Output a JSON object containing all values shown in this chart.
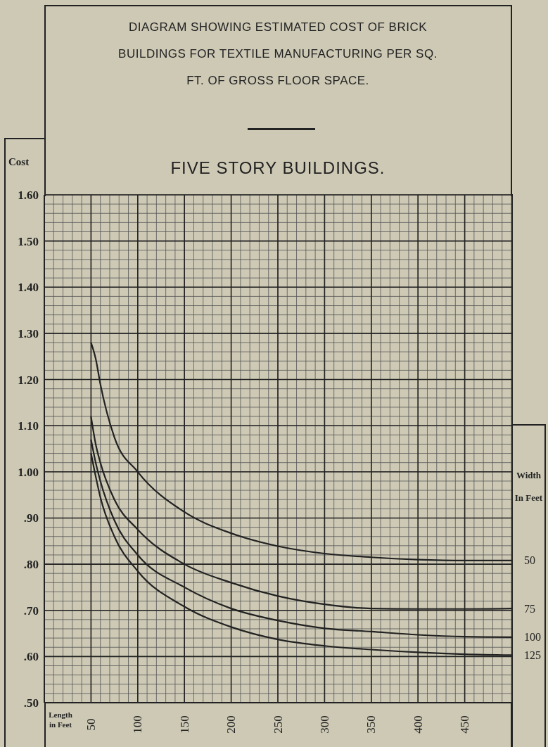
{
  "chart_data": {
    "type": "line",
    "title": "DIAGRAM SHOWING ESTIMATED COST OF BRICK BUILDINGS FOR TEXTILE MANUFACTURING PER SQ. FT. OF GROSS FLOOR SPACE.",
    "subtitle": "FIVE STORY BUILDINGS.",
    "xlabel": "Length in Feet",
    "ylabel": "Cost",
    "legend_title": "Width In Feet",
    "x": [
      50,
      55,
      60,
      75,
      100,
      150,
      200,
      250,
      300,
      350,
      400,
      450,
      500
    ],
    "series": [
      {
        "name": "50",
        "color": "#222222",
        "values": [
          1.28,
          1.245,
          1.19,
          1.075,
          1.0,
          0.913,
          0.867,
          0.839,
          0.823,
          0.815,
          0.81,
          0.808,
          0.808
        ]
      },
      {
        "name": "75",
        "color": "#222222",
        "values": [
          1.12,
          1.06,
          1.02,
          0.94,
          0.875,
          0.8,
          0.76,
          0.731,
          0.713,
          0.704,
          0.703,
          0.703,
          0.704
        ]
      },
      {
        "name": "100",
        "color": "#222222",
        "values": [
          1.07,
          1.02,
          0.98,
          0.895,
          0.82,
          0.75,
          0.704,
          0.678,
          0.661,
          0.654,
          0.647,
          0.643,
          0.642
        ]
      },
      {
        "name": "125",
        "color": "#222222",
        "values": [
          1.04,
          0.99,
          0.945,
          0.86,
          0.785,
          0.708,
          0.664,
          0.637,
          0.623,
          0.615,
          0.609,
          0.605,
          0.603
        ]
      }
    ],
    "xlim": [
      0,
      500
    ],
    "xticks": [
      50,
      100,
      150,
      200,
      250,
      300,
      350,
      400,
      450
    ],
    "ylim": [
      0.5,
      1.6
    ],
    "yticks": [
      {
        "value": 0.5,
        "label": ".50"
      },
      {
        "value": 0.6,
        "label": ".60"
      },
      {
        "value": 0.7,
        "label": ".70"
      },
      {
        "value": 0.8,
        "label": ".80"
      },
      {
        "value": 0.9,
        "label": ".90"
      },
      {
        "value": 1.0,
        "label": "1.00"
      },
      {
        "value": 1.1,
        "label": "1.10"
      },
      {
        "value": 1.2,
        "label": "1.20"
      },
      {
        "value": 1.3,
        "label": "1.30"
      },
      {
        "value": 1.4,
        "label": "1.40"
      },
      {
        "value": 1.5,
        "label": "1.50"
      },
      {
        "value": 1.6,
        "label": "1.60"
      }
    ],
    "grid": true,
    "legend": "right",
    "marker": "none",
    "line_style": "solid"
  }
}
